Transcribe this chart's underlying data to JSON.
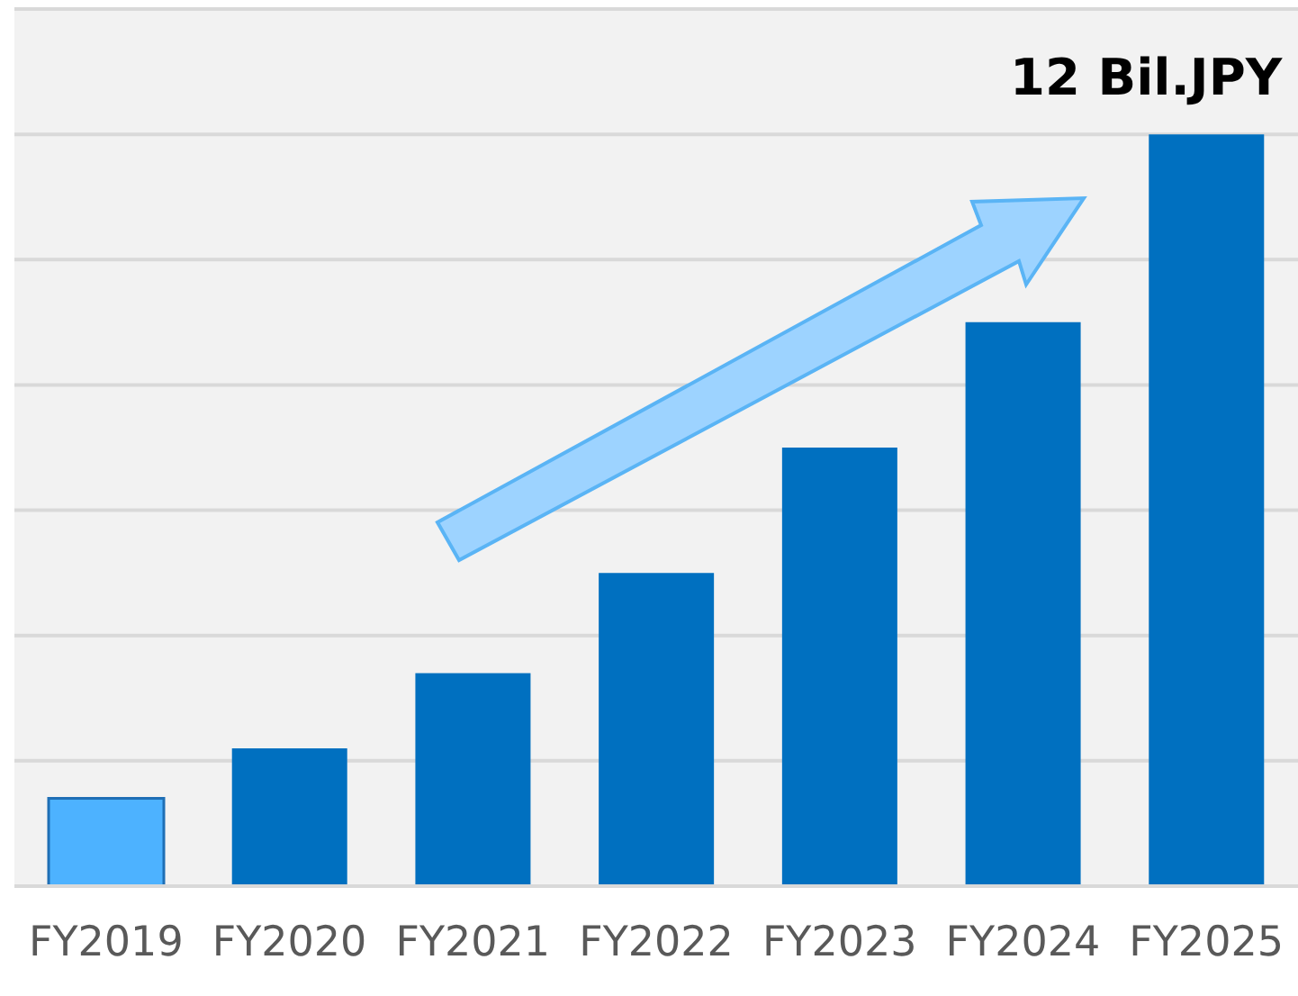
{
  "chart_data": {
    "type": "bar",
    "categories": [
      "FY2019",
      "FY2020",
      "FY2021",
      "FY2022",
      "FY2023",
      "FY2024",
      "FY2025"
    ],
    "values": [
      1.4,
      2.2,
      3.4,
      5,
      7,
      9,
      12
    ],
    "colors": [
      "#4db2ff",
      "#0070c0",
      "#0070c0",
      "#0070c0",
      "#0070c0",
      "#0070c0",
      "#0070c0"
    ],
    "value_labels": [
      null,
      null,
      null,
      null,
      null,
      null,
      "12 Bil.JPY"
    ],
    "ylim": [
      0,
      14
    ],
    "tick_labels": "x",
    "grid": "y"
  }
}
